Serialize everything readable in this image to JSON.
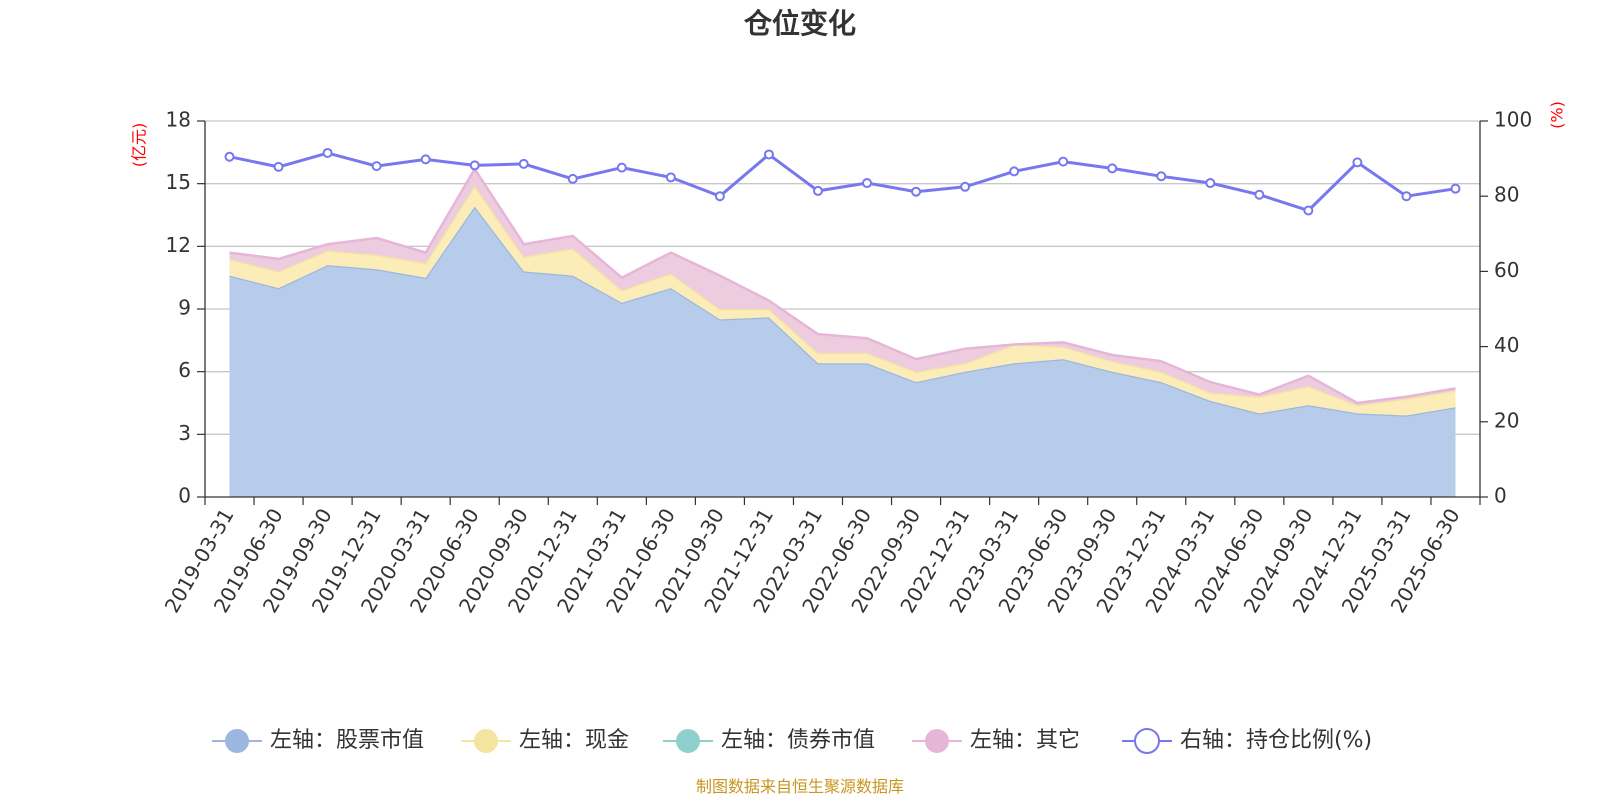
{
  "chart_data": {
    "type": "area",
    "title": "仓位变化",
    "left_axis_unit": "(亿元)",
    "right_axis_unit": "(%)",
    "left_ylim": [
      0,
      18
    ],
    "left_ticks": [
      0,
      3,
      6,
      9,
      12,
      15,
      18
    ],
    "right_ylim": [
      0,
      100
    ],
    "right_ticks": [
      0,
      20,
      40,
      60,
      80,
      100
    ],
    "grid": true,
    "legend_position": "bottom",
    "categories": [
      "2019-03-31",
      "2019-06-30",
      "2019-09-30",
      "2019-12-31",
      "2020-03-31",
      "2020-06-30",
      "2020-09-30",
      "2020-12-31",
      "2021-03-31",
      "2021-06-30",
      "2021-09-30",
      "2021-12-31",
      "2022-03-31",
      "2022-06-30",
      "2022-09-30",
      "2022-12-31",
      "2023-03-31",
      "2023-06-30",
      "2023-09-30",
      "2023-12-31",
      "2024-03-31",
      "2024-06-30",
      "2024-09-30",
      "2024-12-31",
      "2025-03-31",
      "2025-06-30"
    ],
    "series": [
      {
        "name": "左轴：股票市值",
        "axis": "left",
        "type": "stacked-area",
        "color": "#9bb7e0",
        "fill": "#b7cceb",
        "values": [
          10.6,
          10.0,
          11.1,
          10.9,
          10.5,
          13.9,
          10.8,
          10.6,
          9.3,
          10.0,
          8.5,
          8.6,
          6.4,
          6.4,
          5.5,
          6.0,
          6.4,
          6.6,
          6.0,
          5.5,
          4.6,
          4.0,
          4.4,
          4.0,
          3.9,
          4.3
        ]
      },
      {
        "name": "左轴：现金",
        "axis": "left",
        "type": "stacked-area",
        "color": "#f5e3a0",
        "fill": "#fbecb8",
        "values": [
          0.8,
          0.8,
          0.7,
          0.7,
          0.7,
          1.0,
          0.7,
          1.3,
          0.6,
          0.7,
          0.5,
          0.4,
          0.5,
          0.5,
          0.5,
          0.4,
          0.9,
          0.6,
          0.5,
          0.5,
          0.4,
          0.8,
          0.9,
          0.4,
          0.8,
          0.8
        ]
      },
      {
        "name": "左轴：债券市值",
        "axis": "left",
        "type": "stacked-area",
        "color": "#8fd0cc",
        "fill": "#a8dcd8",
        "values": [
          0,
          0,
          0,
          0,
          0,
          0,
          0,
          0,
          0,
          0,
          0,
          0,
          0,
          0,
          0,
          0,
          0,
          0,
          0,
          0,
          0,
          0,
          0,
          0,
          0,
          0
        ]
      },
      {
        "name": "左轴：其它",
        "axis": "left",
        "type": "stacked-area",
        "color": "#e6b6d8",
        "fill": "#eeccdf",
        "values": [
          0.3,
          0.6,
          0.3,
          0.8,
          0.5,
          0.8,
          0.6,
          0.6,
          0.6,
          1.0,
          1.6,
          0.4,
          0.9,
          0.7,
          0.6,
          0.7,
          0.0,
          0.2,
          0.3,
          0.5,
          0.5,
          0.1,
          0.5,
          0.1,
          0.1,
          0.1
        ]
      },
      {
        "name": "右轴：持仓比例(%)",
        "axis": "right",
        "type": "line",
        "color": "#7777f0",
        "values": [
          90.5,
          87.8,
          91.5,
          88.0,
          89.8,
          88.2,
          88.6,
          84.6,
          87.6,
          85.0,
          80.0,
          91.1,
          81.4,
          83.5,
          81.2,
          82.5,
          86.6,
          89.2,
          87.4,
          85.3,
          83.5,
          80.4,
          76.2,
          89.0,
          80.0,
          82.0
        ]
      }
    ],
    "source_note": "制图数据来自恒生聚源数据库"
  }
}
